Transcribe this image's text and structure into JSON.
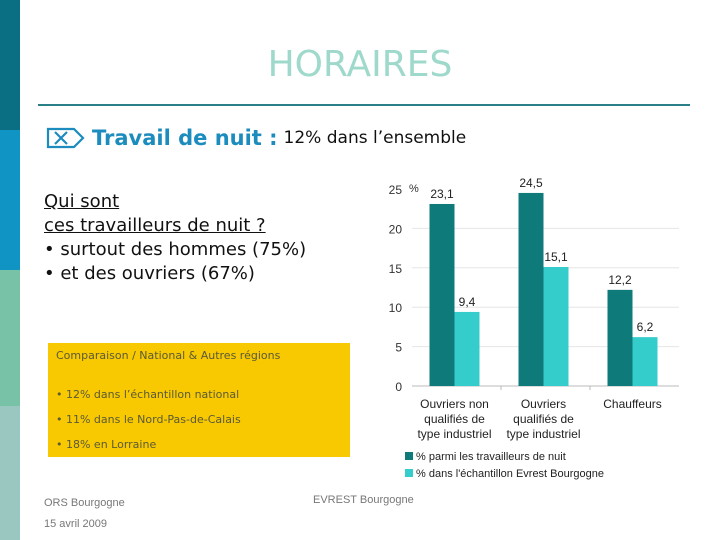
{
  "slide": {
    "title": "HORAIRES",
    "colors": {
      "strip": [
        "#0b6f84",
        "#0f94c4",
        "#78c2a7",
        "#9ac8c1"
      ],
      "title": "#9fd9cb",
      "rule": "#2b7f86",
      "accent": "#1b8cbd",
      "callout_bg": "#f8c800",
      "series_dark": "#0f7a7a",
      "series_light": "#35cccc"
    }
  },
  "subheading": {
    "icon": "boxed-x-arrow-icon",
    "bold": "Travail de nuit :",
    "rest": "12% dans l’ensemble"
  },
  "question": {
    "line1": "Qui sont",
    "line2": "ces travailleurs de nuit ?",
    "bullets": [
      "• surtout des hommes (75%)",
      "• et des ouvriers (67%)"
    ]
  },
  "callout": {
    "heading": "Comparaison / National & Autres régions",
    "items": [
      "• 12% dans l’échantillon national",
      "• 11% dans le Nord-Pas-de-Calais",
      "• 18% en Lorraine"
    ]
  },
  "footer": {
    "org": "ORS Bourgogne",
    "date": "15 avril 2009",
    "center": "EVREST Bourgogne"
  },
  "chart_data": {
    "type": "bar",
    "title": "",
    "xlabel": "",
    "ylabel": "%",
    "ylim": [
      0,
      25
    ],
    "yticks": [
      "0",
      "5",
      "10",
      "15",
      "20",
      "25"
    ],
    "grid": true,
    "legend_position": "bottom",
    "categories": [
      "Ouvriers non qualifiés de type industriel",
      "Ouvriers qualifiés de type industriel",
      "Chauffeurs"
    ],
    "category_lines": [
      [
        "Ouvriers non",
        "qualifiés de",
        "type industriel"
      ],
      [
        "Ouvriers",
        "qualifiés de",
        "type industriel"
      ],
      [
        "Chauffeurs"
      ]
    ],
    "series": [
      {
        "name": "% parmi les travailleurs de nuit",
        "values": [
          23.1,
          24.5,
          12.2
        ],
        "labels": [
          "23,1",
          "24,5",
          "12,2"
        ]
      },
      {
        "name": "% dans l'échantillon Evrest Bourgogne",
        "values": [
          9.4,
          15.1,
          6.2
        ],
        "labels": [
          "9,4",
          "15,1",
          "6,2"
        ]
      }
    ]
  }
}
